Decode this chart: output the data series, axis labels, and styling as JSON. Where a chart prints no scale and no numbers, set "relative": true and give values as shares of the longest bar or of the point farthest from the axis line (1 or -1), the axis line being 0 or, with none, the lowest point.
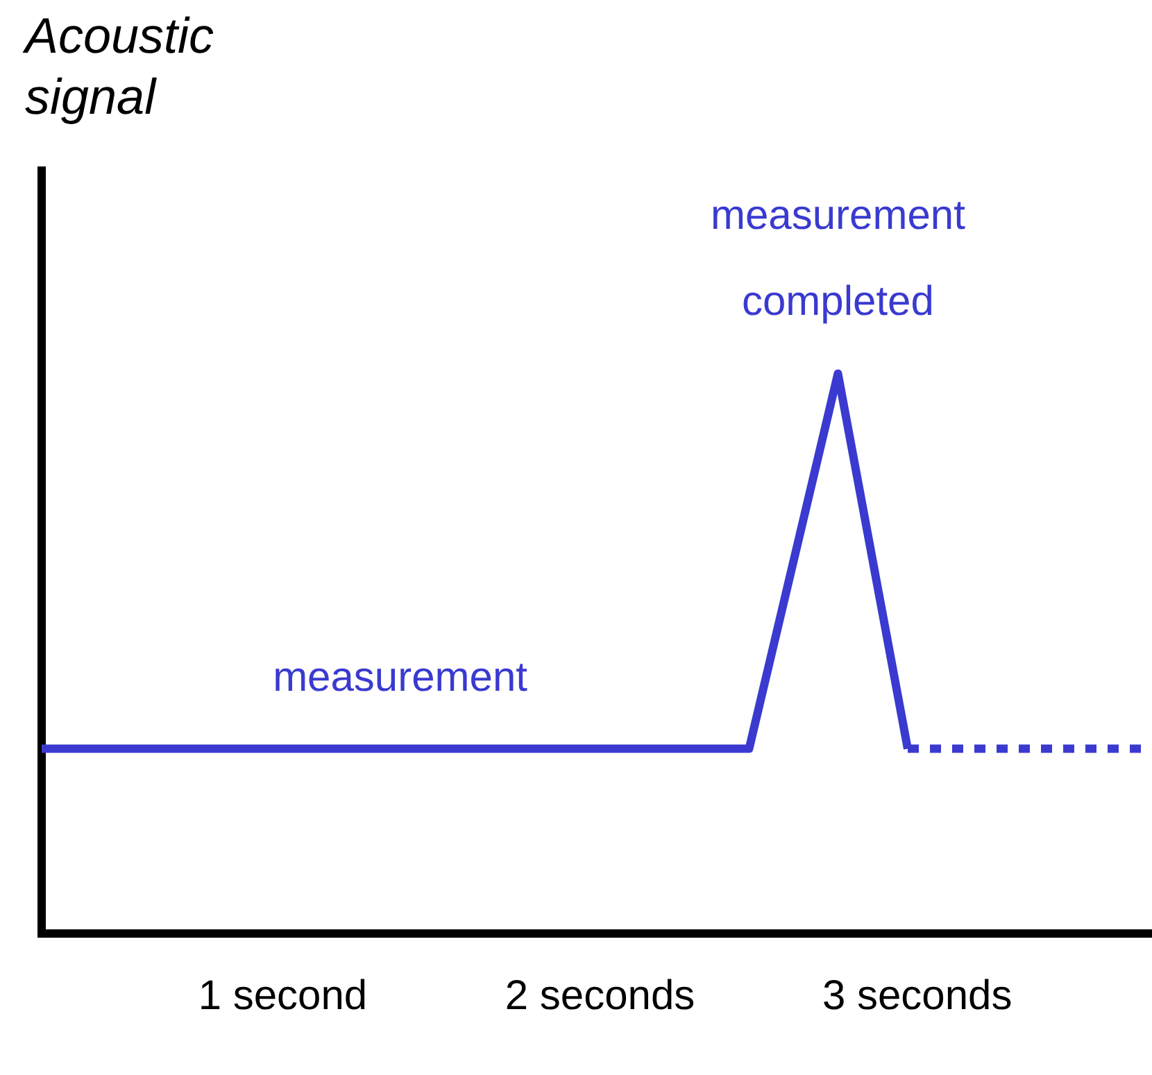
{
  "chart_data": {
    "type": "line",
    "relative": true,
    "ylabel": "Acoustic signal",
    "xlim": [
      0.24,
      3.74
    ],
    "xticks": [
      {
        "value": 1,
        "label": "1 second"
      },
      {
        "value": 2,
        "label": "2 seconds"
      },
      {
        "value": 3,
        "label": "3 seconds"
      }
    ],
    "tick_labels": "x",
    "grid": false,
    "legend": false,
    "marker": "none",
    "series": [
      {
        "color": "#3a3ad0",
        "line_style": "solid",
        "x": [
          0.24,
          2.47,
          2.75,
          2.97
        ],
        "values": [
          0.33,
          0.33,
          1,
          0.33
        ]
      },
      {
        "color": "#3a3ad0",
        "line_style": "dotted",
        "x": [
          2.97,
          3.74
        ],
        "values": [
          0.33,
          0.33
        ]
      }
    ],
    "annotations": [
      {
        "text": "measurement",
        "x": 1.37,
        "y": 0.33
      },
      {
        "text": "measurement completed",
        "x": 2.75,
        "y": 1
      }
    ]
  }
}
